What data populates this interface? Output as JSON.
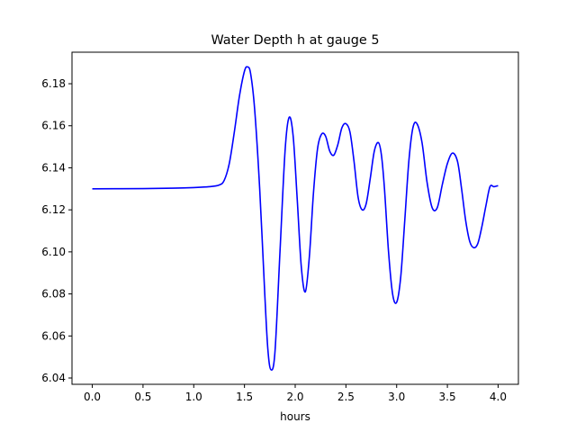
{
  "chart_data": {
    "type": "line",
    "title": "Water Depth h at gauge 5",
    "xlabel": "hours",
    "ylabel": "",
    "xlim": [
      -0.2,
      4.2
    ],
    "ylim": [
      6.037,
      6.195
    ],
    "xticks": [
      0.0,
      0.5,
      1.0,
      1.5,
      2.0,
      2.5,
      3.0,
      3.5,
      4.0
    ],
    "xtick_labels": [
      "0.0",
      "0.5",
      "1.0",
      "1.5",
      "2.0",
      "2.5",
      "3.0",
      "3.5",
      "4.0"
    ],
    "yticks": [
      6.04,
      6.06,
      6.08,
      6.1,
      6.12,
      6.14,
      6.16,
      6.18
    ],
    "ytick_labels": [
      "6.04",
      "6.06",
      "6.08",
      "6.10",
      "6.12",
      "6.14",
      "6.16",
      "6.18"
    ],
    "grid": false,
    "series": [
      {
        "color": "#0000ff",
        "x": [
          0.0,
          0.5,
          0.8,
          1.0,
          1.15,
          1.25,
          1.3,
          1.35,
          1.4,
          1.45,
          1.5,
          1.53,
          1.56,
          1.6,
          1.65,
          1.7,
          1.73,
          1.76,
          1.8,
          1.85,
          1.9,
          1.94,
          1.98,
          2.02,
          2.06,
          2.1,
          2.14,
          2.18,
          2.22,
          2.26,
          2.3,
          2.34,
          2.38,
          2.42,
          2.46,
          2.5,
          2.54,
          2.58,
          2.62,
          2.66,
          2.7,
          2.74,
          2.78,
          2.82,
          2.85,
          2.88,
          2.92,
          2.96,
          3.0,
          3.04,
          3.08,
          3.12,
          3.16,
          3.2,
          3.25,
          3.3,
          3.35,
          3.4,
          3.45,
          3.5,
          3.55,
          3.6,
          3.64,
          3.68,
          3.72,
          3.76,
          3.8,
          3.84,
          3.88,
          3.92,
          3.96,
          4.0
        ],
        "y": [
          6.13,
          6.1301,
          6.1303,
          6.1306,
          6.131,
          6.1318,
          6.134,
          6.142,
          6.157,
          6.174,
          6.186,
          6.188,
          6.185,
          6.168,
          6.13,
          6.08,
          6.054,
          6.044,
          6.052,
          6.1,
          6.148,
          6.164,
          6.155,
          6.125,
          6.093,
          6.081,
          6.098,
          6.128,
          6.149,
          6.156,
          6.155,
          6.148,
          6.146,
          6.151,
          6.159,
          6.161,
          6.157,
          6.143,
          6.126,
          6.12,
          6.123,
          6.135,
          6.148,
          6.152,
          6.146,
          6.13,
          6.1,
          6.08,
          6.076,
          6.088,
          6.115,
          6.143,
          6.159,
          6.161,
          6.152,
          6.133,
          6.121,
          6.121,
          6.132,
          6.142,
          6.147,
          6.143,
          6.13,
          6.115,
          6.105,
          6.102,
          6.104,
          6.112,
          6.122,
          6.131,
          6.131,
          6.1315
        ]
      }
    ]
  }
}
